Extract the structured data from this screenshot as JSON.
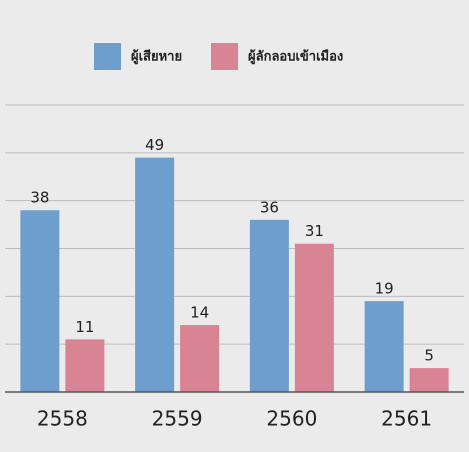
{
  "chart_data": {
    "type": "bar",
    "categories": [
      "2558",
      "2559",
      "2560",
      "2561"
    ],
    "series": [
      {
        "name": "ผู้เสียหาย",
        "color": "#6d9ecd",
        "values": [
          38,
          49,
          36,
          19
        ]
      },
      {
        "name": "ผู้ลักลอบเข้าเมือง",
        "color": "#d98494",
        "values": [
          11,
          14,
          31,
          5
        ]
      }
    ],
    "ylim": [
      0,
      60
    ],
    "yticks": [
      0,
      10,
      20,
      30,
      40,
      50,
      60
    ],
    "grid": true,
    "legend": "top"
  }
}
